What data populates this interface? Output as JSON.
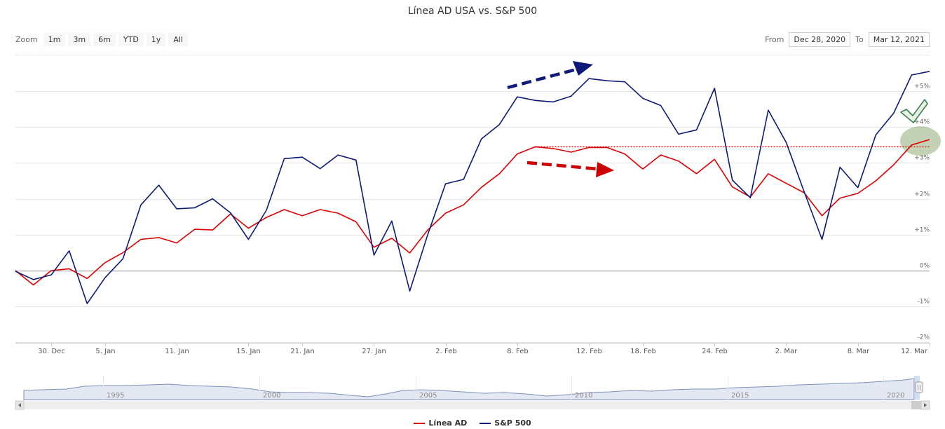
{
  "title": "Línea AD USA vs. S&P 500",
  "zoom": {
    "label": "Zoom",
    "buttons": [
      "1m",
      "3m",
      "6m",
      "YTD",
      "1y",
      "All"
    ]
  },
  "range": {
    "from_label": "From",
    "from_value": "Dec 28, 2020",
    "to_label": "To",
    "to_value": "Mar 12, 2021"
  },
  "colors": {
    "ad_line": "#dd0000",
    "sp500": "#0d1a78",
    "reference": "#ff0000",
    "highlight": "#7a9a5a",
    "check": "#4a8a5a"
  },
  "legend": [
    {
      "name": "Línea AD",
      "color": "#dd0000"
    },
    {
      "name": "S&P 500",
      "color": "#0d1a78"
    }
  ],
  "navigator": {
    "years": [
      "1995",
      "2000",
      "2005",
      "2010",
      "2015",
      "2020"
    ]
  },
  "chart_data": {
    "type": "line",
    "title": "Línea AD USA vs. S&P 500",
    "ylim": [
      -2,
      5.5
    ],
    "yticks": [
      -2,
      -1,
      0,
      1,
      2,
      3,
      4,
      5
    ],
    "ytick_labels": [
      "-2%",
      "-1%",
      "0%",
      "+1%",
      "+2%",
      "+3%",
      "+4%",
      "+5%"
    ],
    "x_count": 52,
    "xticks": [
      {
        "index": 2,
        "label": "30. Dec"
      },
      {
        "index": 5,
        "label": "5. Jan"
      },
      {
        "index": 9,
        "label": "11. Jan"
      },
      {
        "index": 13,
        "label": "15. Jan"
      },
      {
        "index": 16,
        "label": "21. Jan"
      },
      {
        "index": 20,
        "label": "27. Jan"
      },
      {
        "index": 24,
        "label": "2. Feb"
      },
      {
        "index": 28,
        "label": "8. Feb"
      },
      {
        "index": 32,
        "label": "12. Feb"
      },
      {
        "index": 35,
        "label": "18. Feb"
      },
      {
        "index": 39,
        "label": "24. Feb"
      },
      {
        "index": 43,
        "label": "2. Mar"
      },
      {
        "index": 47,
        "label": "8. Mar"
      },
      {
        "index": 51,
        "label": "12. Mar"
      }
    ],
    "series": [
      {
        "name": "Línea AD",
        "values": [
          0,
          -0.4,
          0,
          0.05,
          -0.22,
          0.22,
          0.5,
          0.87,
          0.92,
          0.77,
          1.15,
          1.13,
          1.58,
          1.18,
          1.48,
          1.7,
          1.53,
          1.7,
          1.6,
          1.36,
          0.65,
          0.9,
          0.49,
          1.13,
          1.6,
          1.83,
          2.32,
          2.7,
          3.25,
          3.45,
          3.4,
          3.3,
          3.43,
          3.43,
          3.25,
          2.83,
          3.22,
          3.05,
          2.7,
          3.1,
          2.33,
          2.05,
          2.7,
          2.43,
          2.17,
          1.53,
          2.02,
          2.15,
          2.5,
          2.95,
          3.5,
          3.65
        ]
      },
      {
        "name": "S&P 500",
        "values": [
          -0.02,
          -0.25,
          -0.12,
          0.55,
          -0.92,
          -0.2,
          0.33,
          1.83,
          2.38,
          1.72,
          1.75,
          2.0,
          1.61,
          0.87,
          1.68,
          3.12,
          3.16,
          2.84,
          3.22,
          3.08,
          0.43,
          1.38,
          -0.57,
          1.0,
          2.42,
          2.54,
          3.67,
          4.07,
          4.84,
          4.74,
          4.7,
          4.86,
          5.35,
          5.29,
          5.26,
          4.8,
          4.6,
          3.8,
          3.92,
          5.08,
          2.52,
          2.03,
          4.47,
          3.57,
          2.2,
          0.87,
          2.88,
          2.31,
          3.78,
          4.39,
          5.45,
          5.55
        ]
      }
    ],
    "reference_line": {
      "value": 3.45
    }
  }
}
